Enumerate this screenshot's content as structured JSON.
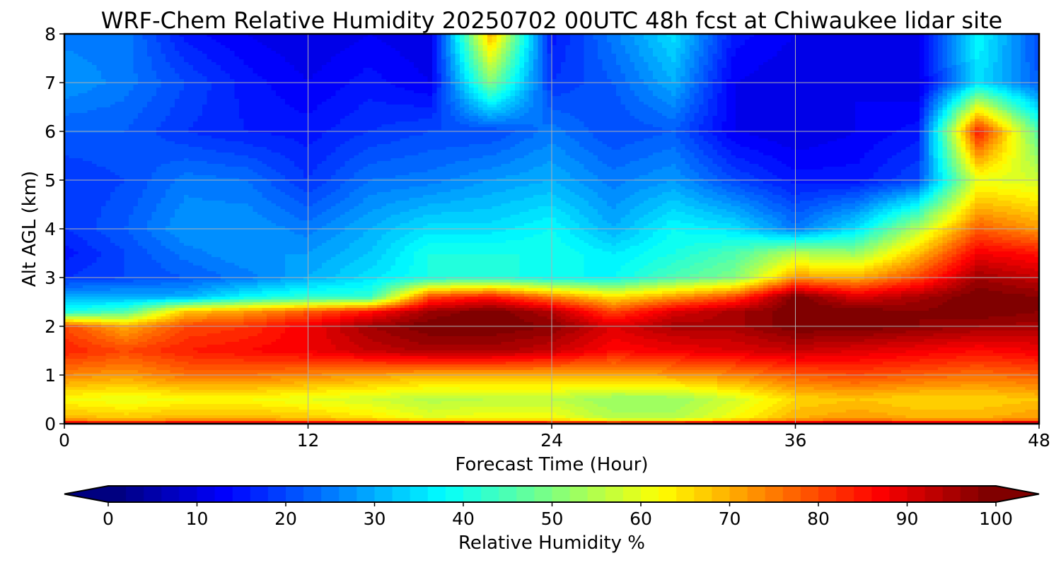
{
  "chart_data": {
    "type": "heatmap",
    "title": "WRF-Chem Relative Humidity 20250702 00UTC 48h fcst at Chiwaukee lidar site",
    "xlabel": "Forecast Time (Hour)",
    "ylabel": "Alt AGL (km)",
    "xlim": [
      0,
      48
    ],
    "ylim": [
      0,
      8
    ],
    "x_ticks": [
      0,
      12,
      24,
      36,
      48
    ],
    "y_ticks": [
      0,
      1,
      2,
      3,
      4,
      5,
      6,
      7,
      8
    ],
    "grid": true,
    "colormap": "jet",
    "colorbar": {
      "label": "Relative Humidity %",
      "range": [
        0,
        100
      ],
      "ticks": [
        0,
        10,
        20,
        30,
        40,
        50,
        60,
        70,
        80,
        90,
        100
      ],
      "extend": "both",
      "orientation": "horizontal"
    },
    "x": [
      0,
      3,
      6,
      9,
      12,
      15,
      18,
      21,
      24,
      27,
      30,
      33,
      36,
      39,
      42,
      45,
      48
    ],
    "y": [
      0,
      0.1,
      0.5,
      1,
      1.5,
      2,
      2.3,
      2.6,
      3,
      3.5,
      4,
      5,
      6,
      7,
      8
    ],
    "values": [
      [
        90,
        90,
        90,
        92,
        92,
        92,
        95,
        92,
        90,
        90,
        92,
        95,
        95,
        95,
        95,
        95,
        95
      ],
      [
        70,
        68,
        70,
        70,
        68,
        65,
        60,
        62,
        62,
        55,
        55,
        62,
        70,
        72,
        70,
        70,
        72
      ],
      [
        62,
        60,
        62,
        62,
        60,
        58,
        55,
        56,
        56,
        52,
        52,
        58,
        66,
        68,
        66,
        66,
        68
      ],
      [
        74,
        72,
        76,
        76,
        74,
        72,
        70,
        70,
        70,
        70,
        72,
        74,
        78,
        80,
        78,
        76,
        78
      ],
      [
        84,
        80,
        84,
        86,
        88,
        92,
        95,
        95,
        92,
        86,
        88,
        90,
        92,
        90,
        88,
        86,
        88
      ],
      [
        80,
        70,
        80,
        82,
        88,
        96,
        100,
        100,
        98,
        90,
        95,
        95,
        100,
        100,
        98,
        96,
        95
      ],
      [
        40,
        45,
        68,
        72,
        78,
        85,
        96,
        100,
        94,
        80,
        90,
        95,
        100,
        100,
        98,
        100,
        98
      ],
      [
        30,
        30,
        30,
        38,
        42,
        42,
        80,
        85,
        75,
        65,
        72,
        80,
        100,
        90,
        95,
        100,
        98
      ],
      [
        18,
        20,
        22,
        25,
        30,
        35,
        40,
        42,
        38,
        38,
        45,
        50,
        72,
        70,
        80,
        96,
        92
      ],
      [
        15,
        20,
        25,
        28,
        28,
        32,
        40,
        40,
        40,
        36,
        40,
        45,
        55,
        52,
        68,
        88,
        85
      ],
      [
        18,
        22,
        28,
        28,
        25,
        30,
        35,
        35,
        38,
        30,
        38,
        35,
        25,
        35,
        55,
        78,
        72
      ],
      [
        18,
        20,
        25,
        24,
        18,
        24,
        25,
        28,
        30,
        25,
        28,
        20,
        15,
        15,
        20,
        60,
        58
      ],
      [
        22,
        22,
        18,
        16,
        15,
        18,
        20,
        20,
        25,
        20,
        22,
        12,
        10,
        12,
        15,
        85,
        45
      ],
      [
        28,
        25,
        20,
        15,
        12,
        15,
        12,
        50,
        18,
        22,
        30,
        12,
        10,
        12,
        10,
        35,
        22
      ],
      [
        25,
        25,
        15,
        12,
        10,
        12,
        10,
        70,
        15,
        25,
        35,
        15,
        12,
        12,
        12,
        38,
        20
      ]
    ]
  }
}
